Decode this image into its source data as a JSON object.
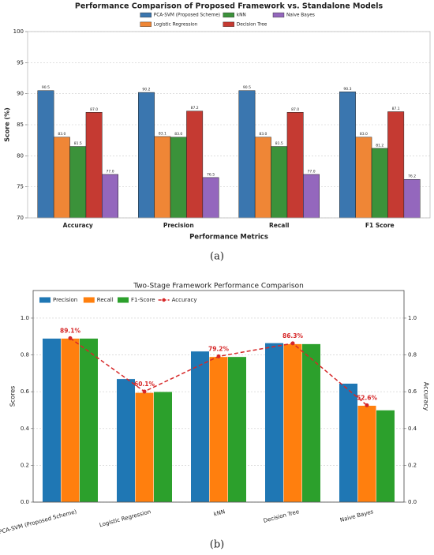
{
  "chart_data": [
    {
      "type": "bar",
      "title": "Performance Comparison of Proposed Framework vs. Standalone Models",
      "xlabel": "Performance Metrics",
      "ylabel": "Score (%)",
      "caption": "(a)",
      "categories": [
        "Accuracy",
        "Precision",
        "Recall",
        "F1 Score"
      ],
      "series": [
        {
          "name": "PCA-SVM (Proposed Scheme)",
          "color": "#3a76af",
          "values": [
            90.5,
            90.2,
            90.5,
            90.3
          ],
          "value_labels": [
            "90.5",
            "90.2",
            "90.5",
            "90.3"
          ]
        },
        {
          "name": "Logistic Regression",
          "color": "#ef8636",
          "values": [
            83.0,
            83.1,
            83.0,
            83.0
          ],
          "value_labels": [
            "83.0",
            "83.1",
            "83.0",
            "83.0"
          ]
        },
        {
          "name": "kNN",
          "color": "#3b923a",
          "values": [
            81.5,
            83.0,
            81.5,
            81.2
          ],
          "value_labels": [
            "81.5",
            "83.0",
            "81.5",
            "81.2"
          ]
        },
        {
          "name": "Decision Tree",
          "color": "#c53a32",
          "values": [
            87.0,
            87.2,
            87.0,
            87.1
          ],
          "value_labels": [
            "87.0",
            "87.2",
            "87.0",
            "87.1"
          ]
        },
        {
          "name": "Naive Bayes",
          "color": "#9467bd",
          "values": [
            77.0,
            76.5,
            77.0,
            76.2
          ],
          "value_labels": [
            "77.0",
            "76.5",
            "77.0",
            "76.2"
          ]
        }
      ],
      "ylim": [
        70,
        100
      ],
      "yticks": [
        70,
        75,
        80,
        85,
        90,
        95,
        100
      ],
      "grid": true,
      "legend": "upper center",
      "legend_columns": 3
    },
    {
      "type": "bar",
      "title": "Two-Stage Framework Performance Comparison",
      "ylabel": "Scores",
      "y2label": "Accuracy",
      "caption": "(b)",
      "categories": [
        "PCA-SVM (Proposed Scheme)",
        "Logistic Regression",
        "kNN",
        "Decision Tree",
        "Naive Bayes"
      ],
      "series": [
        {
          "name": "Precision",
          "color": "#1f77b4",
          "values": [
            0.89,
            0.67,
            0.82,
            0.865,
            0.645
          ]
        },
        {
          "name": "Recall",
          "color": "#ff7f0e",
          "values": [
            0.89,
            0.595,
            0.79,
            0.86,
            0.525
          ]
        },
        {
          "name": "F1-Score",
          "color": "#2ca02c",
          "values": [
            0.89,
            0.6,
            0.79,
            0.86,
            0.5
          ]
        },
        {
          "name": "Accuracy",
          "color": "#d62728",
          "axis": "y2",
          "linestyle": "dashed",
          "marker": "o",
          "values": [
            0.891,
            0.601,
            0.792,
            0.863,
            0.526
          ],
          "value_labels": [
            "89.1%",
            "60.1%",
            "79.2%",
            "86.3%",
            "52.6%"
          ]
        }
      ],
      "ylim": [
        0,
        1.15
      ],
      "yticks": [
        {
          "value": 0,
          "label": "0.0"
        },
        0.2,
        0.4,
        0.6,
        0.8,
        {
          "value": 1,
          "label": "1.0"
        }
      ],
      "y2lim": [
        0,
        1.15
      ],
      "y2ticks": [
        {
          "value": 0,
          "label": "0.0"
        },
        0.2,
        0.4,
        0.6,
        0.8,
        {
          "value": 1,
          "label": "1.0"
        }
      ],
      "grid": true,
      "legend": "upper left",
      "legend_columns": 4
    }
  ]
}
